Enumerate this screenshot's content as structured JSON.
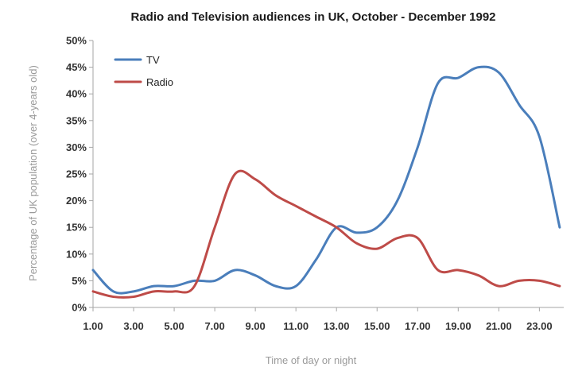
{
  "chart_data": {
    "type": "line",
    "title": "Radio and Television audiences in UK, October - December 1992",
    "xlabel": "Time of day or night",
    "ylabel": "Percentage of UK population (over 4-years old)",
    "xlim": [
      1,
      24.2
    ],
    "ylim": [
      0,
      50
    ],
    "yticks": [
      0,
      5,
      10,
      15,
      20,
      25,
      30,
      35,
      40,
      45,
      50
    ],
    "ytick_labels": [
      "0%",
      "5%",
      "10%",
      "15%",
      "20%",
      "25%",
      "30%",
      "35%",
      "40%",
      "45%",
      "50%"
    ],
    "xticks": [
      1,
      3,
      5,
      7,
      9,
      11,
      13,
      15,
      17,
      19,
      21,
      23
    ],
    "xtick_labels": [
      "1.00",
      "3.00",
      "5.00",
      "7.00",
      "9.00",
      "11.00",
      "13.00",
      "15.00",
      "17.00",
      "19.00",
      "21.00",
      "23.00"
    ],
    "grid": false,
    "legend_position": "top-left",
    "series": [
      {
        "name": "TV",
        "color": "#4a7ebb",
        "x": [
          1,
          2,
          3,
          4,
          5,
          6,
          7,
          8,
          9,
          10,
          11,
          12,
          13,
          14,
          15,
          16,
          17,
          18,
          19,
          20,
          21,
          22,
          23,
          24
        ],
        "values": [
          7,
          3,
          3,
          4,
          4,
          5,
          5,
          7,
          6,
          4,
          4,
          9,
          15,
          14,
          15,
          20,
          30,
          42,
          43,
          45,
          44,
          38,
          32,
          15
        ]
      },
      {
        "name": "Radio",
        "color": "#be4b48",
        "x": [
          1,
          2,
          3,
          4,
          5,
          6,
          7,
          8,
          9,
          10,
          11,
          12,
          13,
          14,
          15,
          16,
          17,
          18,
          19,
          20,
          21,
          22,
          23,
          24
        ],
        "values": [
          3,
          2,
          2,
          3,
          3,
          4,
          15,
          25,
          24,
          21,
          19,
          17,
          15,
          12,
          11,
          13,
          13,
          7,
          7,
          6,
          4,
          5,
          5,
          4
        ]
      }
    ]
  }
}
